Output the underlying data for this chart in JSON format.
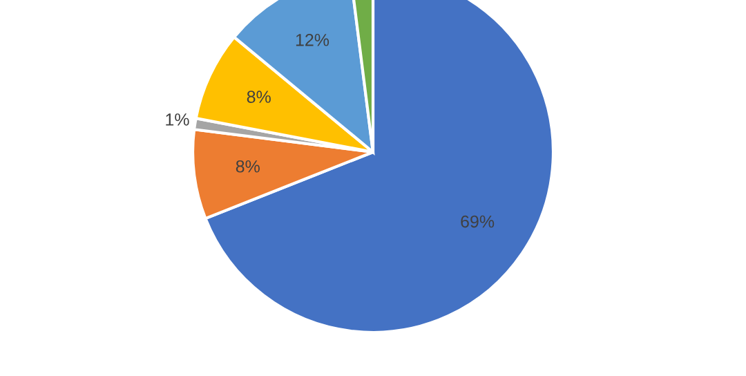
{
  "chart_data": {
    "type": "pie",
    "categories": [
      null,
      null,
      null,
      null,
      null,
      null
    ],
    "values": [
      69,
      8,
      1,
      8,
      12,
      2
    ],
    "value_labels": [
      "69%",
      "8%",
      "1%",
      "8%",
      "12%",
      null
    ],
    "colors": [
      "#4472c4",
      "#ed7d31",
      "#a5a5a5",
      "#ffc000",
      "#5b9bd5",
      "#70ad47"
    ],
    "legend": false
  }
}
